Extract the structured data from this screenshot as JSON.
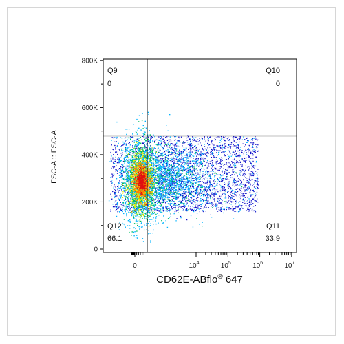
{
  "chart_data": {
    "type": "scatter",
    "subtype": "flow-cytometry-density-dot-plot",
    "xlabel": "CD62E-ABflo",
    "xlabel_superscript": "®",
    "xlabel_suffix": " 647",
    "ylabel": "FSC-A :: FSC-A",
    "x_scale": "biexponential",
    "x_ticks": [
      {
        "value": 0,
        "label": "0",
        "sup": ""
      },
      {
        "value": 10000,
        "label": "10",
        "sup": "4"
      },
      {
        "value": 100000,
        "label": "10",
        "sup": "5"
      },
      {
        "value": 1000000,
        "label": "10",
        "sup": "6"
      },
      {
        "value": 10000000,
        "label": "10",
        "sup": "7"
      }
    ],
    "y_scale": "linear",
    "ylim": [
      0,
      820000
    ],
    "y_ticks": [
      {
        "value": 0,
        "label": "0"
      },
      {
        "value": 200000,
        "label": "200K"
      },
      {
        "value": 400000,
        "label": "400K"
      },
      {
        "value": 600000,
        "label": "600K"
      },
      {
        "value": 800000,
        "label": "800K"
      }
    ],
    "gate": {
      "x_threshold_approx": 2000,
      "y_threshold": 480000
    },
    "quadrants": [
      {
        "name": "Q9",
        "value": "0",
        "position": "top-left"
      },
      {
        "name": "Q10",
        "value": "0",
        "position": "top-right"
      },
      {
        "name": "Q11",
        "value": "33.9",
        "position": "bottom-right"
      },
      {
        "name": "Q12",
        "value": "66.1",
        "position": "bottom-left"
      }
    ],
    "population": {
      "description_center_y": 290000,
      "y_range": [
        160000,
        480000
      ],
      "density_colors": [
        "#1010c8",
        "#00b4ff",
        "#00c060",
        "#f0f000",
        "#ff8000",
        "#e01010"
      ]
    },
    "grid": false,
    "legend": "none"
  }
}
